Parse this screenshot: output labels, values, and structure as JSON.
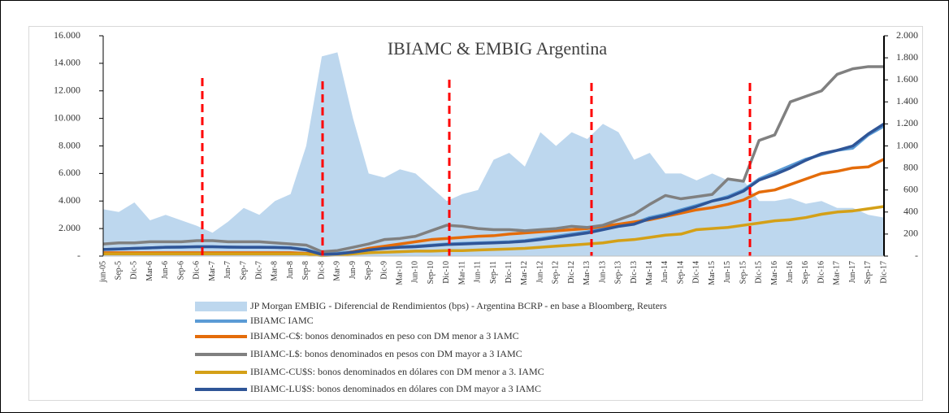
{
  "chart_data": {
    "type": "line",
    "title": "IBIAMC & EMBIG Argentina",
    "categories": [
      "jun-05",
      "Sep-5",
      "Dic-5",
      "Mar-6",
      "Jun-6",
      "Sep-6",
      "Dic-6",
      "Mar-7",
      "Jun-7",
      "Sep-7",
      "Dic-7",
      "Mar-8",
      "Jun-8",
      "Sep-8",
      "Dic-8",
      "Mar-9",
      "Jun-9",
      "Sep-9",
      "Dic-9",
      "Mar-10",
      "Jun-10",
      "Sep-10",
      "Dic-10",
      "Mar-11",
      "Jun-11",
      "Sep-11",
      "Dic-11",
      "Mar-12",
      "Jun-12",
      "Sep-12",
      "Dic-12",
      "Mar-13",
      "Jun-13",
      "Sep-13",
      "Dic-13",
      "Mar-14",
      "Jun-14",
      "Sep-14",
      "Dic-14",
      "Mar-15",
      "Jun-15",
      "Sep-15",
      "Dic-15",
      "Mar-16",
      "Jun-16",
      "Sep-16",
      "Dic-16",
      "Mar-17",
      "Jun-17",
      "Sep-17",
      "Dic-17"
    ],
    "ylim": [
      0,
      16000
    ],
    "yticks": [
      {
        "value": 0,
        "label": "-"
      },
      {
        "value": 2000,
        "label": "2.000"
      },
      {
        "value": 4000,
        "label": "4.000"
      },
      {
        "value": 6000,
        "label": "6.000"
      },
      {
        "value": 8000,
        "label": "8.000"
      },
      {
        "value": 10000,
        "label": "10.000"
      },
      {
        "value": 12000,
        "label": "12.000"
      },
      {
        "value": 14000,
        "label": "14.000"
      },
      {
        "value": 16000,
        "label": "16.000"
      }
    ],
    "y2lim": [
      0,
      2000
    ],
    "y2ticks": [
      {
        "value": 0,
        "label": "-"
      },
      200,
      400,
      600,
      800,
      {
        "value": 1000,
        "label": "1.000"
      },
      {
        "value": 1200,
        "label": "1.200"
      },
      {
        "value": 1400,
        "label": "1.400"
      },
      {
        "value": 1600,
        "label": "1.600"
      },
      {
        "value": 1800,
        "label": "1.800"
      },
      {
        "value": 2000,
        "label": "2.000"
      }
    ],
    "series": [
      {
        "name": "JP Morgan EMBIG - Diferencial de Rendimientos (bps) - Argentina BCRP - en base a Bloomberg, Reuters",
        "type": "area",
        "color": "#bdd7ee",
        "values": [
          3400,
          3200,
          3900,
          2600,
          3000,
          2600,
          2200,
          1700,
          2500,
          3500,
          3000,
          4000,
          4500,
          8000,
          14500,
          14800,
          10000,
          6000,
          5700,
          6300,
          6000,
          5000,
          4000,
          4500,
          4800,
          7000,
          7500,
          6500,
          9000,
          8000,
          9000,
          8500,
          9600,
          9000,
          7000,
          7500,
          6000,
          6000,
          5500,
          6000,
          5500,
          5500,
          4000,
          4000,
          4200,
          3800,
          4000,
          3500,
          3500,
          3000,
          2800
        ]
      },
      {
        "name": "IBIAMC IAMC",
        "axis": "y2",
        "color": "#5b9bd5",
        "values": [
          60,
          65,
          70,
          75,
          80,
          80,
          85,
          85,
          80,
          80,
          80,
          80,
          75,
          60,
          20,
          25,
          40,
          60,
          75,
          85,
          90,
          100,
          110,
          115,
          120,
          125,
          130,
          140,
          160,
          180,
          200,
          220,
          250,
          280,
          300,
          350,
          380,
          420,
          460,
          500,
          540,
          600,
          700,
          760,
          820,
          880,
          920,
          960,
          980,
          1100,
          1180
        ]
      },
      {
        "name": "IBIAMC-C$: bonos denominados en peso con DM menor a 3 IAMC",
        "axis": "y2",
        "color": "#e46c0a",
        "values": [
          30,
          30,
          30,
          30,
          30,
          30,
          30,
          30,
          30,
          30,
          30,
          30,
          30,
          25,
          10,
          15,
          40,
          70,
          90,
          110,
          130,
          150,
          160,
          170,
          180,
          185,
          200,
          210,
          220,
          230,
          240,
          250,
          270,
          290,
          310,
          330,
          360,
          390,
          420,
          440,
          470,
          510,
          580,
          600,
          650,
          700,
          750,
          770,
          800,
          810,
          880
        ]
      },
      {
        "name": "IBIAMC-L$: bonos denominados en pesos con DM mayor a 3 IAMC",
        "axis": "y2",
        "color": "#808080",
        "values": [
          110,
          120,
          120,
          130,
          130,
          130,
          140,
          140,
          130,
          130,
          130,
          120,
          110,
          100,
          40,
          50,
          80,
          110,
          150,
          160,
          180,
          230,
          280,
          270,
          250,
          240,
          240,
          230,
          240,
          250,
          270,
          260,
          280,
          330,
          380,
          470,
          550,
          520,
          540,
          560,
          700,
          680,
          1050,
          1100,
          1400,
          1450,
          1500,
          1650,
          1700,
          1720,
          1720
        ]
      },
      {
        "name": "IBIAMC-CU$S: bonos denominados en dólares con DM menor a 3. IAMC",
        "axis": "y2",
        "color": "#d4a017",
        "values": [
          20,
          20,
          20,
          20,
          20,
          20,
          20,
          20,
          20,
          20,
          20,
          20,
          20,
          20,
          5,
          10,
          20,
          30,
          35,
          40,
          45,
          45,
          50,
          50,
          55,
          60,
          65,
          70,
          80,
          90,
          100,
          110,
          120,
          140,
          150,
          170,
          190,
          200,
          240,
          250,
          260,
          280,
          300,
          320,
          330,
          350,
          380,
          400,
          410,
          430,
          450
        ]
      },
      {
        "name": "IBIAMC-LU$S: bonos denominados en dólares con DM mayor a 3 IAMC",
        "axis": "y2",
        "color": "#2f5597",
        "values": [
          60,
          65,
          70,
          75,
          80,
          82,
          85,
          85,
          82,
          80,
          80,
          78,
          75,
          55,
          15,
          20,
          35,
          55,
          70,
          80,
          85,
          95,
          105,
          110,
          115,
          120,
          125,
          135,
          150,
          170,
          190,
          210,
          240,
          270,
          290,
          340,
          370,
          410,
          450,
          500,
          530,
          590,
          690,
          740,
          800,
          870,
          930,
          960,
          1000,
          1110,
          1200
        ]
      }
    ]
  }
}
